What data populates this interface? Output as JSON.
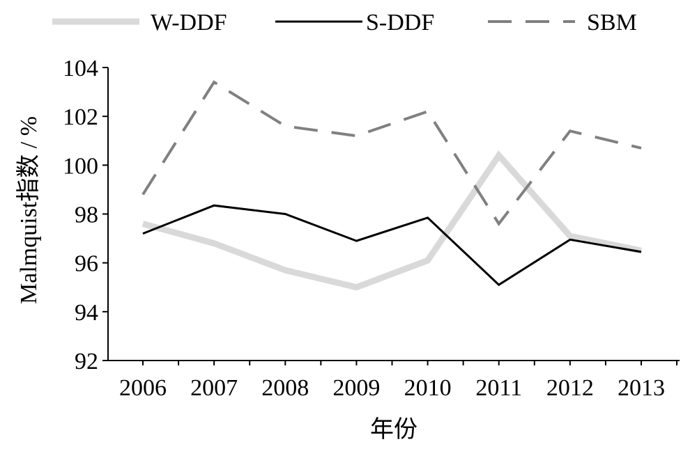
{
  "chart_data": {
    "type": "line",
    "title": "",
    "xlabel": "年份",
    "ylabel": "Malmquist指数 / %",
    "categories": [
      "2006",
      "2007",
      "2008",
      "2009",
      "2010",
      "2011",
      "2012",
      "2013"
    ],
    "ylim": [
      92,
      104
    ],
    "yticks": [
      "92",
      "94",
      "96",
      "98",
      "100",
      "102",
      "104"
    ],
    "grid": false,
    "legend_position": "top",
    "series": [
      {
        "name": "W-DDF",
        "color": "#d9d9d9",
        "style": "thick-solid",
        "values": [
          97.6,
          96.8,
          95.7,
          95.0,
          96.1,
          100.4,
          97.1,
          96.5
        ]
      },
      {
        "name": "S-DDF",
        "color": "#000000",
        "style": "solid",
        "values": [
          97.2,
          98.35,
          98.0,
          96.9,
          97.85,
          95.1,
          96.95,
          96.45
        ]
      },
      {
        "name": "SBM",
        "color": "#808080",
        "style": "dashed",
        "values": [
          98.8,
          103.4,
          101.6,
          101.2,
          102.2,
          97.6,
          101.4,
          100.7
        ]
      }
    ]
  }
}
